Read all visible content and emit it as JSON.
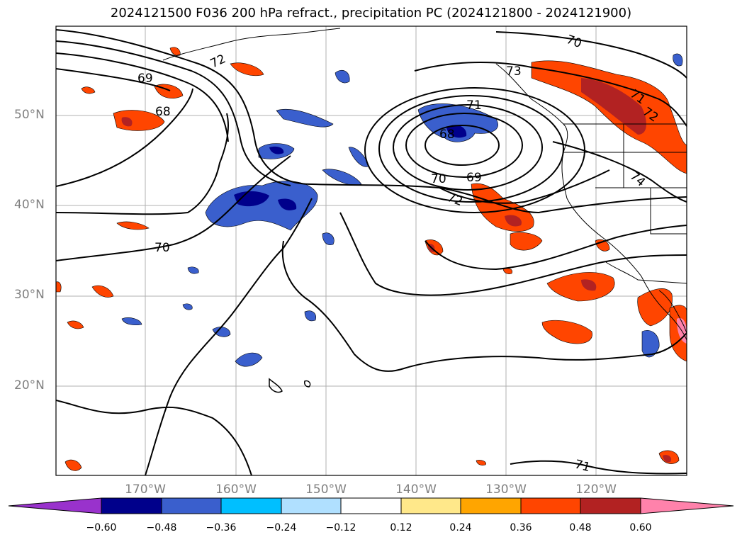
{
  "title": "2024121500 F036 200 hPa refract., precipitation PC (2024121800 - 2024121900)",
  "lat_labels": [
    "50°N",
    "40°N",
    "30°N",
    "20°N"
  ],
  "lon_labels": [
    "170°W",
    "160°W",
    "150°W",
    "140°W",
    "130°W",
    "120°W"
  ],
  "contour_labels": [
    "70",
    "72",
    "69",
    "68",
    "73",
    "71",
    "71",
    "72",
    "68",
    "70",
    "69",
    "72",
    "74",
    "70",
    "71"
  ],
  "colorbar": {
    "ticks": [
      "−0.60",
      "−0.48",
      "−0.36",
      "−0.24",
      "−0.12",
      "0.12",
      "0.24",
      "0.36",
      "0.48",
      "0.60"
    ],
    "colors": [
      "#9932cc",
      "#00008b",
      "#3a5fcd",
      "#00bfff",
      "#b0e0ff",
      "#ffffff",
      "#ffe88a",
      "#ffa500",
      "#ff4500",
      "#b22222",
      "#ff82ab"
    ]
  }
}
